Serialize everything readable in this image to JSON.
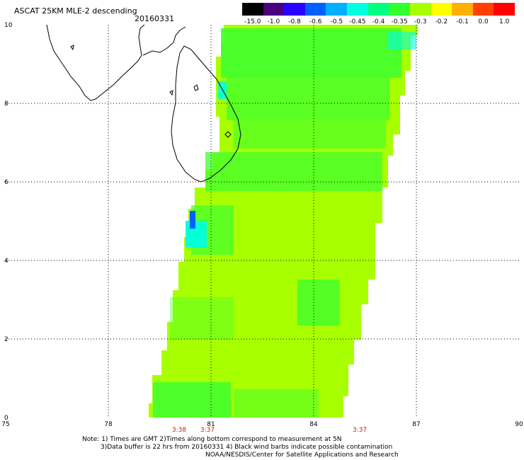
{
  "header": {
    "title": "ASCAT 25KM MLE-2 descending",
    "date": "20160331"
  },
  "colorbar": {
    "labels": [
      "-15.0",
      "-1.0",
      "-0.8",
      "-0.6",
      "-0.5",
      "-0.45",
      "-0.4",
      "-0.35",
      "-0.3",
      "-0.2",
      "-0.1",
      "0.0",
      "1.0"
    ],
    "colors": [
      "#000000",
      "#4a0080",
      "#2a00ff",
      "#0060ff",
      "#00b0ff",
      "#00ffe0",
      "#00ff80",
      "#30ff30",
      "#a8ff00",
      "#ffff00",
      "#ffb000",
      "#ff4000",
      "#ff0000"
    ]
  },
  "map": {
    "lon_ticks": [
      "75",
      "78",
      "81",
      "84",
      "87",
      "90"
    ],
    "lat_ticks": [
      "0",
      "2",
      "4",
      "6",
      "8",
      "10"
    ],
    "times": [
      "3:38",
      "3:37",
      "3:37"
    ],
    "swath_color": "#a8ff00",
    "patch_color": "#40ff30",
    "low_color": "#00ffe0",
    "lowest_color": "#0060ff",
    "land_outline": "#000000"
  },
  "notes": {
    "line1": "Note: 1) Times are GMT 2)Times along bottom correspond to measurement at 5N",
    "line2": "3)Data buffer is 22 hrs from 20160331 4) Black wind barbs indicate possible contamination",
    "line3": "NOAA/NESDIS/Center for Satellite Applications and Research"
  }
}
